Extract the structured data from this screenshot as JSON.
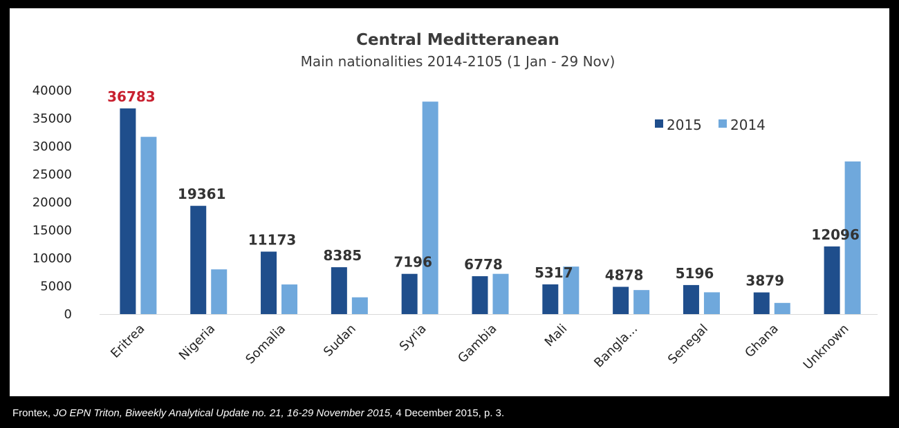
{
  "chart_data": {
    "type": "bar",
    "title": "Central Meditteranean",
    "subtitle": "Main nationalities 2014-2105 (1 Jan - 29 Nov)",
    "categories": [
      "Eritrea",
      "Nigeria",
      "Somalia",
      "Sudan",
      "Syria",
      "Gambia",
      "Mali",
      "Bangla...",
      "Senegal",
      "Ghana",
      "Unknown"
    ],
    "series": [
      {
        "name": "2015",
        "color": "#1f4e8c",
        "values": [
          36783,
          19361,
          11173,
          8385,
          7196,
          6778,
          5317,
          4878,
          5196,
          3879,
          12096
        ],
        "data_labels": [
          "36783",
          "19361",
          "11173",
          "8385",
          "7196",
          "6778",
          "5317",
          "4878",
          "5196",
          "3879",
          "12096"
        ]
      },
      {
        "name": "2014",
        "color": "#6fa8dc",
        "values": [
          31700,
          8000,
          5300,
          3000,
          38000,
          7200,
          8500,
          4300,
          3900,
          2000,
          27300
        ]
      }
    ],
    "highlight_label_color": "#c8202f",
    "xlabel": "",
    "ylabel": "",
    "ylim": [
      0,
      40000
    ],
    "yticks": [
      0,
      5000,
      10000,
      15000,
      20000,
      25000,
      30000,
      35000,
      40000
    ],
    "ytick_labels": [
      "0",
      "5000",
      "10000",
      "15000",
      "20000",
      "25000",
      "30000",
      "35000",
      "40000"
    ],
    "legend": {
      "position": "top-right",
      "entries": [
        "2015",
        "2014"
      ]
    },
    "grid": false
  },
  "caption": {
    "prefix": "Frontex, ",
    "italic": "JO EPN Triton, Biweekly Analytical Update no. 21, 16-29 November 2015,",
    "suffix": " 4 December 2015, p. 3."
  }
}
